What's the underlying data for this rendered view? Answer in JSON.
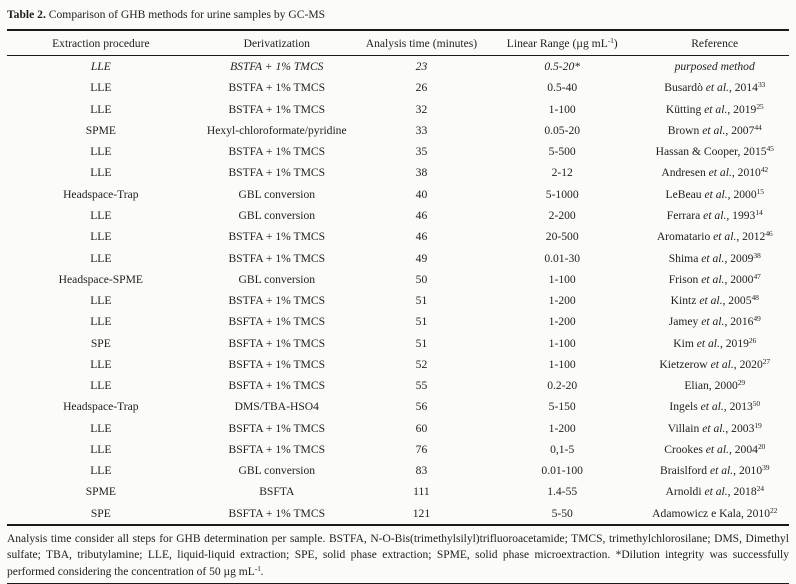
{
  "title": {
    "label": "Table 2.",
    "text": " Comparison of GHB methods for urine samples by GC-MS"
  },
  "table": {
    "headers": [
      {
        "text": "Extraction procedure",
        "sup": "",
        "post": ""
      },
      {
        "text": "Derivatization",
        "sup": "",
        "post": ""
      },
      {
        "text": "Analysis time (minutes)",
        "sup": "",
        "post": ""
      },
      {
        "text": "Linear Range (µg mL",
        "sup": "-1",
        "post": ")"
      },
      {
        "text": "Reference",
        "sup": "",
        "post": ""
      }
    ],
    "rows": [
      {
        "extraction": "LLE",
        "derivatization": "BSTFA + 1% TMCS",
        "time": "23",
        "range": "0.5-20*",
        "ref": {
          "pre": "purposed method",
          "etal": "",
          "post": "",
          "sup": ""
        },
        "italic": true
      },
      {
        "extraction": "LLE",
        "derivatization": "BSTFA + 1% TMCS",
        "time": "26",
        "range": "0.5-40",
        "ref": {
          "pre": "Busardò ",
          "etal": "et al.",
          "post": ", 2014",
          "sup": "33"
        },
        "italic": false
      },
      {
        "extraction": "LLE",
        "derivatization": "BSTFA + 1% TMCS",
        "time": "32",
        "range": "1-100",
        "ref": {
          "pre": "Kütting ",
          "etal": "et al.",
          "post": ", 2019",
          "sup": "25"
        },
        "italic": false
      },
      {
        "extraction": "SPME",
        "derivatization": "Hexyl-chloroformate/pyridine",
        "time": "33",
        "range": "0.05-20",
        "ref": {
          "pre": "Brown ",
          "etal": "et al.",
          "post": ", 2007",
          "sup": "44"
        },
        "italic": false
      },
      {
        "extraction": "LLE",
        "derivatization": "BSTFA + 1% TMCS",
        "time": "35",
        "range": "5-500",
        "ref": {
          "pre": "Hassan & Cooper, 2015",
          "etal": "",
          "post": "",
          "sup": "45"
        },
        "italic": false
      },
      {
        "extraction": "LLE",
        "derivatization": "BSTFA + 1% TMCS",
        "time": "38",
        "range": "2-12",
        "ref": {
          "pre": "Andresen ",
          "etal": "et al.",
          "post": ", 2010",
          "sup": "42"
        },
        "italic": false
      },
      {
        "extraction": "Headspace-Trap",
        "derivatization": "GBL conversion",
        "time": "40",
        "range": "5-1000",
        "ref": {
          "pre": "LeBeau ",
          "etal": "et al.",
          "post": ", 2000",
          "sup": "15"
        },
        "italic": false
      },
      {
        "extraction": "LLE",
        "derivatization": "GBL conversion",
        "time": "46",
        "range": "2-200",
        "ref": {
          "pre": "Ferrara ",
          "etal": "et al.",
          "post": ", 1993",
          "sup": "14"
        },
        "italic": false
      },
      {
        "extraction": "LLE",
        "derivatization": "BSTFA + 1% TMCS",
        "time": "46",
        "range": "20-500",
        "ref": {
          "pre": "Aromatario ",
          "etal": "et al.",
          "post": ", 2012",
          "sup": "46"
        },
        "italic": false
      },
      {
        "extraction": "LLE",
        "derivatization": "BSTFA + 1% TMCS",
        "time": "49",
        "range": "0.01-30",
        "ref": {
          "pre": "Shima ",
          "etal": "et al.",
          "post": ", 2009",
          "sup": "38"
        },
        "italic": false
      },
      {
        "extraction": "Headspace-SPME",
        "derivatization": "GBL conversion",
        "time": "50",
        "range": "1-100",
        "ref": {
          "pre": "Frison ",
          "etal": "et al.",
          "post": ", 2000",
          "sup": "47"
        },
        "italic": false
      },
      {
        "extraction": "LLE",
        "derivatization": "BSTFA + 1% TMCS",
        "time": "51",
        "range": "1-200",
        "ref": {
          "pre": "Kintz ",
          "etal": "et al.",
          "post": ", 2005",
          "sup": "48"
        },
        "italic": false
      },
      {
        "extraction": "LLE",
        "derivatization": "BSFTA + 1% TMCS",
        "time": "51",
        "range": "1-200",
        "ref": {
          "pre": "Jamey ",
          "etal": "et al.",
          "post": ", 2016",
          "sup": "49"
        },
        "italic": false
      },
      {
        "extraction": "SPE",
        "derivatization": "BSFTA + 1% TMCS",
        "time": "51",
        "range": "1-100",
        "ref": {
          "pre": "Kim ",
          "etal": "et al.",
          "post": ", 2019",
          "sup": "26"
        },
        "italic": false
      },
      {
        "extraction": "LLE",
        "derivatization": "BSFTA + 1% TMCS",
        "time": "52",
        "range": "1-100",
        "ref": {
          "pre": "Kietzerow ",
          "etal": "et al.",
          "post": ", 2020",
          "sup": "27"
        },
        "italic": false
      },
      {
        "extraction": "LLE",
        "derivatization": "BSFTA + 1% TMCS",
        "time": "55",
        "range": "0.2-20",
        "ref": {
          "pre": "Elian, 2000",
          "etal": "",
          "post": "",
          "sup": "29"
        },
        "italic": false
      },
      {
        "extraction": "Headspace-Trap",
        "derivatization": "DMS/TBA-HSO4",
        "time": "56",
        "range": "5-150",
        "ref": {
          "pre": "Ingels ",
          "etal": "et al.",
          "post": ", 2013",
          "sup": "50"
        },
        "italic": false
      },
      {
        "extraction": "LLE",
        "derivatization": "BSFTA + 1% TMCS",
        "time": "60",
        "range": "1-200",
        "ref": {
          "pre": "Villain ",
          "etal": "et al.",
          "post": ", 2003",
          "sup": "19"
        },
        "italic": false
      },
      {
        "extraction": "LLE",
        "derivatization": "BSFTA + 1% TMCS",
        "time": "76",
        "range": "0,1-5",
        "ref": {
          "pre": "Crookes ",
          "etal": "et al.",
          "post": ", 2004",
          "sup": "20"
        },
        "italic": false
      },
      {
        "extraction": "LLE",
        "derivatization": "GBL conversion",
        "time": "83",
        "range": "0.01-100",
        "ref": {
          "pre": "Braislford ",
          "etal": "et al.",
          "post": ", 2010",
          "sup": "39"
        },
        "italic": false
      },
      {
        "extraction": "SPME",
        "derivatization": "BSFTA",
        "time": "111",
        "range": "1.4-55",
        "ref": {
          "pre": "Arnoldi ",
          "etal": "et al.",
          "post": ", 2018",
          "sup": "24"
        },
        "italic": false
      },
      {
        "extraction": "SPE",
        "derivatization": "BSFTA + 1% TMCS",
        "time": "121",
        "range": "5-50",
        "ref": {
          "pre": "Adamowicz e Kala, 2010",
          "etal": "",
          "post": "",
          "sup": "22"
        },
        "italic": false
      }
    ]
  },
  "footnote": {
    "pre": "Analysis time consider all steps for GHB determination per sample. BSTFA, N-O-Bis(trimethylsilyl)trifluoroacetamide; TMCS, trimethylchlorosilane; DMS, Dimethyl sulfate; TBA, tributylamine; LLE, liquid-liquid extraction; SPE, solid phase extraction; SPME, solid phase microextraction. *Dilution integrity was successfully performed considering the concentration of 50 µg mL",
    "sup": "-1",
    "post": "."
  }
}
